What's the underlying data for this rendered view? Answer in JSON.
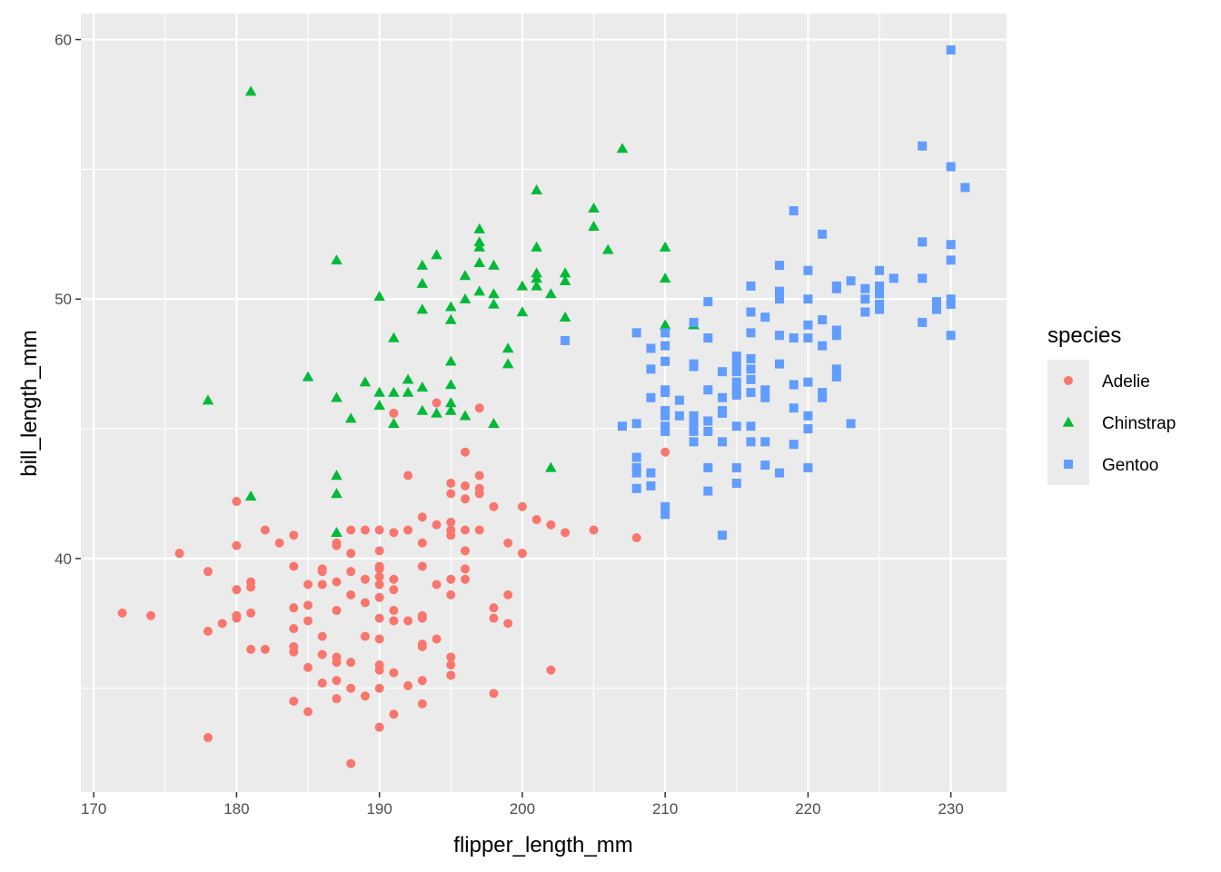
{
  "chart_data": {
    "type": "scatter",
    "title": "",
    "xlabel": "flipper_length_mm",
    "ylabel": "bill_length_mm",
    "xlim": [
      169.1,
      233.9
    ],
    "ylim": [
      31.0,
      61.0
    ],
    "xticks": [
      170,
      180,
      190,
      200,
      210,
      220,
      230
    ],
    "yticks": [
      40,
      50,
      60
    ],
    "grid": true,
    "legend": {
      "title": "species",
      "position": "right"
    },
    "series": [
      {
        "name": "Adelie",
        "color": "#F8766D",
        "shape": "circle",
        "points": [
          [
            172,
            37.9
          ],
          [
            174,
            37.8
          ],
          [
            176,
            40.2
          ],
          [
            178,
            39.5
          ],
          [
            178,
            37.2
          ],
          [
            178,
            33.1
          ],
          [
            179,
            37.5
          ],
          [
            180,
            42.2
          ],
          [
            180,
            40.5
          ],
          [
            180,
            38.8
          ],
          [
            180,
            37.8
          ],
          [
            180,
            37.7
          ],
          [
            181,
            39.1
          ],
          [
            181,
            38.9
          ],
          [
            181,
            37.9
          ],
          [
            181,
            36.5
          ],
          [
            182,
            41.1
          ],
          [
            182,
            36.5
          ],
          [
            183,
            40.6
          ],
          [
            184,
            40.9
          ],
          [
            184,
            39.7
          ],
          [
            184,
            38.1
          ],
          [
            184,
            37.3
          ],
          [
            184,
            36.6
          ],
          [
            184,
            36.4
          ],
          [
            184,
            34.5
          ],
          [
            185,
            39.0
          ],
          [
            185,
            38.2
          ],
          [
            185,
            37.6
          ],
          [
            185,
            35.8
          ],
          [
            185,
            34.1
          ],
          [
            186,
            39.6
          ],
          [
            186,
            39.5
          ],
          [
            186,
            39.0
          ],
          [
            186,
            37.0
          ],
          [
            186,
            36.3
          ],
          [
            186,
            35.2
          ],
          [
            187,
            40.6
          ],
          [
            187,
            40.5
          ],
          [
            187,
            39.1
          ],
          [
            187,
            38.0
          ],
          [
            187,
            36.2
          ],
          [
            187,
            36.0
          ],
          [
            187,
            35.3
          ],
          [
            187,
            34.6
          ],
          [
            188,
            41.1
          ],
          [
            188,
            40.2
          ],
          [
            188,
            39.5
          ],
          [
            188,
            38.6
          ],
          [
            188,
            36.0
          ],
          [
            188,
            35.0
          ],
          [
            188,
            32.1
          ],
          [
            189,
            41.1
          ],
          [
            189,
            39.2
          ],
          [
            189,
            38.3
          ],
          [
            189,
            37.0
          ],
          [
            189,
            34.7
          ],
          [
            190,
            41.1
          ],
          [
            190,
            40.3
          ],
          [
            190,
            39.7
          ],
          [
            190,
            39.6
          ],
          [
            190,
            39.3
          ],
          [
            190,
            39.0
          ],
          [
            190,
            38.5
          ],
          [
            190,
            37.7
          ],
          [
            190,
            36.9
          ],
          [
            190,
            35.9
          ],
          [
            190,
            35.7
          ],
          [
            190,
            35.0
          ],
          [
            190,
            33.5
          ],
          [
            191,
            45.6
          ],
          [
            191,
            41.0
          ],
          [
            191,
            39.2
          ],
          [
            191,
            38.8
          ],
          [
            191,
            38.0
          ],
          [
            191,
            37.6
          ],
          [
            191,
            35.6
          ],
          [
            191,
            34.0
          ],
          [
            192,
            43.2
          ],
          [
            192,
            41.1
          ],
          [
            192,
            37.6
          ],
          [
            192,
            35.1
          ],
          [
            193,
            41.6
          ],
          [
            193,
            40.6
          ],
          [
            193,
            39.7
          ],
          [
            193,
            37.8
          ],
          [
            193,
            37.7
          ],
          [
            193,
            36.6
          ],
          [
            193,
            36.7
          ],
          [
            193,
            35.3
          ],
          [
            193,
            34.4
          ],
          [
            194,
            46.0
          ],
          [
            194,
            41.3
          ],
          [
            194,
            39.0
          ],
          [
            194,
            36.9
          ],
          [
            195,
            42.9
          ],
          [
            195,
            42.5
          ],
          [
            195,
            41.4
          ],
          [
            195,
            41.1
          ],
          [
            195,
            40.9
          ],
          [
            195,
            39.2
          ],
          [
            195,
            38.6
          ],
          [
            195,
            36.2
          ],
          [
            195,
            35.9
          ],
          [
            195,
            35.5
          ],
          [
            196,
            44.1
          ],
          [
            196,
            42.8
          ],
          [
            196,
            42.3
          ],
          [
            196,
            41.1
          ],
          [
            196,
            40.3
          ],
          [
            196,
            39.6
          ],
          [
            196,
            39.2
          ],
          [
            197,
            45.8
          ],
          [
            197,
            43.2
          ],
          [
            197,
            42.7
          ],
          [
            197,
            42.5
          ],
          [
            197,
            41.1
          ],
          [
            198,
            42.0
          ],
          [
            198,
            38.1
          ],
          [
            198,
            37.7
          ],
          [
            198,
            34.8
          ],
          [
            199,
            40.6
          ],
          [
            199,
            38.6
          ],
          [
            199,
            37.5
          ],
          [
            200,
            42.0
          ],
          [
            200,
            40.2
          ],
          [
            201,
            41.5
          ],
          [
            202,
            41.3
          ],
          [
            202,
            35.7
          ],
          [
            203,
            41.0
          ],
          [
            205,
            41.1
          ],
          [
            208,
            40.8
          ],
          [
            210,
            44.1
          ]
        ]
      },
      {
        "name": "Chinstrap",
        "color": "#00BA38",
        "shape": "triangle",
        "points": [
          [
            178,
            46.1
          ],
          [
            181,
            58.0
          ],
          [
            181,
            42.4
          ],
          [
            185,
            47.0
          ],
          [
            187,
            51.5
          ],
          [
            187,
            46.2
          ],
          [
            187,
            43.2
          ],
          [
            187,
            42.5
          ],
          [
            187,
            41.0
          ],
          [
            188,
            45.4
          ],
          [
            189,
            46.8
          ],
          [
            190,
            50.1
          ],
          [
            190,
            46.4
          ],
          [
            190,
            45.9
          ],
          [
            191,
            48.5
          ],
          [
            191,
            46.4
          ],
          [
            191,
            45.2
          ],
          [
            192,
            46.9
          ],
          [
            192,
            46.4
          ],
          [
            193,
            51.3
          ],
          [
            193,
            50.6
          ],
          [
            193,
            49.6
          ],
          [
            193,
            46.6
          ],
          [
            193,
            45.7
          ],
          [
            194,
            51.7
          ],
          [
            194,
            45.6
          ],
          [
            195,
            49.7
          ],
          [
            195,
            49.2
          ],
          [
            195,
            47.6
          ],
          [
            195,
            46.7
          ],
          [
            195,
            46.0
          ],
          [
            195,
            45.7
          ],
          [
            196,
            50.9
          ],
          [
            196,
            50.0
          ],
          [
            196,
            45.5
          ],
          [
            197,
            52.7
          ],
          [
            197,
            52.2
          ],
          [
            197,
            52.0
          ],
          [
            197,
            51.4
          ],
          [
            197,
            50.3
          ],
          [
            198,
            51.3
          ],
          [
            198,
            50.2
          ],
          [
            198,
            49.8
          ],
          [
            198,
            45.2
          ],
          [
            199,
            48.1
          ],
          [
            199,
            47.5
          ],
          [
            200,
            50.5
          ],
          [
            200,
            49.5
          ],
          [
            201,
            54.2
          ],
          [
            201,
            52.0
          ],
          [
            201,
            51.0
          ],
          [
            201,
            50.8
          ],
          [
            201,
            50.5
          ],
          [
            202,
            50.2
          ],
          [
            202,
            43.5
          ],
          [
            203,
            51.0
          ],
          [
            203,
            50.7
          ],
          [
            203,
            49.3
          ],
          [
            205,
            53.5
          ],
          [
            205,
            52.8
          ],
          [
            206,
            51.9
          ],
          [
            207,
            55.8
          ],
          [
            210,
            52.0
          ],
          [
            210,
            50.8
          ],
          [
            210,
            49.0
          ],
          [
            212,
            49.0
          ]
        ]
      },
      {
        "name": "Gentoo",
        "color": "#619CFF",
        "shape": "square",
        "points": [
          [
            203,
            48.4
          ],
          [
            207,
            45.1
          ],
          [
            208,
            48.7
          ],
          [
            208,
            45.2
          ],
          [
            208,
            43.9
          ],
          [
            208,
            43.5
          ],
          [
            208,
            43.3
          ],
          [
            208,
            42.7
          ],
          [
            209,
            48.1
          ],
          [
            209,
            47.3
          ],
          [
            209,
            46.2
          ],
          [
            209,
            43.3
          ],
          [
            209,
            42.8
          ],
          [
            210,
            48.7
          ],
          [
            210,
            48.2
          ],
          [
            210,
            47.6
          ],
          [
            210,
            46.5
          ],
          [
            210,
            46.4
          ],
          [
            210,
            45.7
          ],
          [
            210,
            45.5
          ],
          [
            210,
            45.1
          ],
          [
            210,
            44.9
          ],
          [
            210,
            42.0
          ],
          [
            210,
            41.7
          ],
          [
            211,
            46.1
          ],
          [
            211,
            45.5
          ],
          [
            212,
            49.1
          ],
          [
            212,
            45.5
          ],
          [
            212,
            45.2
          ],
          [
            212,
            44.9
          ],
          [
            212,
            44.5
          ],
          [
            212,
            47.5
          ],
          [
            212,
            47.4
          ],
          [
            213,
            49.9
          ],
          [
            213,
            48.5
          ],
          [
            213,
            46.5
          ],
          [
            213,
            45.3
          ],
          [
            213,
            44.9
          ],
          [
            213,
            43.5
          ],
          [
            213,
            42.6
          ],
          [
            214,
            47.2
          ],
          [
            214,
            46.2
          ],
          [
            214,
            45.7
          ],
          [
            214,
            45.6
          ],
          [
            214,
            44.5
          ],
          [
            214,
            40.9
          ],
          [
            215,
            47.8
          ],
          [
            215,
            47.5
          ],
          [
            215,
            47.2
          ],
          [
            215,
            46.8
          ],
          [
            215,
            46.5
          ],
          [
            215,
            46.3
          ],
          [
            215,
            45.1
          ],
          [
            215,
            43.5
          ],
          [
            215,
            42.9
          ],
          [
            216,
            50.5
          ],
          [
            216,
            49.5
          ],
          [
            216,
            48.7
          ],
          [
            216,
            47.7
          ],
          [
            216,
            47.3
          ],
          [
            216,
            46.9
          ],
          [
            216,
            46.4
          ],
          [
            216,
            44.5
          ],
          [
            216,
            45.1
          ],
          [
            217,
            49.3
          ],
          [
            217,
            46.5
          ],
          [
            217,
            46.2
          ],
          [
            217,
            44.5
          ],
          [
            217,
            43.6
          ],
          [
            218,
            51.3
          ],
          [
            218,
            50.3
          ],
          [
            218,
            50.0
          ],
          [
            218,
            48.6
          ],
          [
            218,
            47.5
          ],
          [
            218,
            43.3
          ],
          [
            219,
            53.4
          ],
          [
            219,
            48.5
          ],
          [
            219,
            46.7
          ],
          [
            219,
            45.8
          ],
          [
            219,
            44.4
          ],
          [
            220,
            51.1
          ],
          [
            220,
            50.0
          ],
          [
            220,
            49.0
          ],
          [
            220,
            48.5
          ],
          [
            220,
            46.8
          ],
          [
            220,
            45.5
          ],
          [
            220,
            45.0
          ],
          [
            220,
            43.5
          ],
          [
            221,
            52.5
          ],
          [
            221,
            49.2
          ],
          [
            221,
            48.2
          ],
          [
            221,
            46.4
          ],
          [
            221,
            46.2
          ],
          [
            222,
            50.5
          ],
          [
            222,
            50.4
          ],
          [
            222,
            48.8
          ],
          [
            222,
            48.6
          ],
          [
            222,
            47.3
          ],
          [
            222,
            47.0
          ],
          [
            223,
            50.7
          ],
          [
            223,
            45.2
          ],
          [
            224,
            50.4
          ],
          [
            224,
            50.0
          ],
          [
            224,
            49.5
          ],
          [
            225,
            51.1
          ],
          [
            225,
            50.5
          ],
          [
            225,
            50.2
          ],
          [
            225,
            49.8
          ],
          [
            225,
            49.6
          ],
          [
            226,
            50.8
          ],
          [
            228,
            55.9
          ],
          [
            228,
            52.2
          ],
          [
            228,
            50.8
          ],
          [
            228,
            49.1
          ],
          [
            229,
            49.9
          ],
          [
            229,
            49.8
          ],
          [
            229,
            49.6
          ],
          [
            230,
            59.6
          ],
          [
            230,
            55.1
          ],
          [
            230,
            52.1
          ],
          [
            230,
            51.5
          ],
          [
            230,
            50.0
          ],
          [
            230,
            49.8
          ],
          [
            230,
            48.6
          ],
          [
            231,
            54.3
          ]
        ]
      }
    ]
  }
}
